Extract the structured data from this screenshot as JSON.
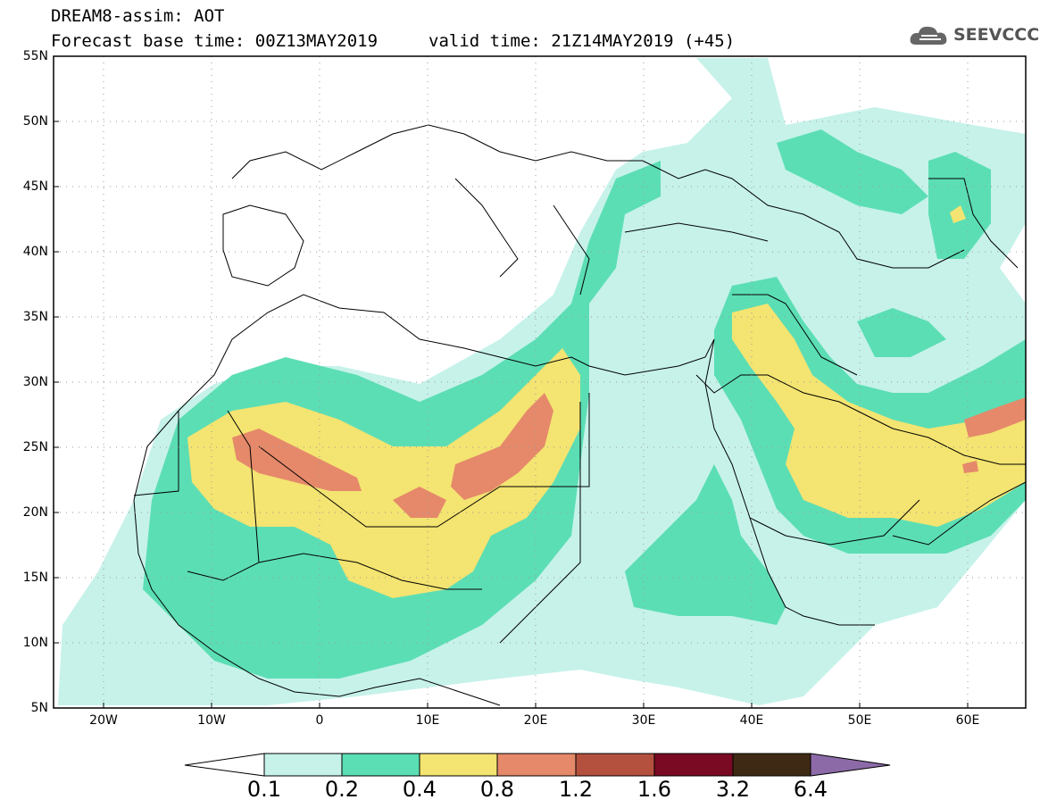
{
  "title": {
    "line1": "DREAM8-assim: AOT",
    "line2": "Forecast base time: 00Z13MAY2019",
    "valid": "valid time: 21Z14MAY2019 (+45)"
  },
  "logo": {
    "text": "SEEVCCC",
    "icon": "cloud-icon"
  },
  "map": {
    "lon_range": [
      -25,
      65
    ],
    "lat_range": [
      5,
      55
    ],
    "lat_ticks": [
      "55N",
      "50N",
      "45N",
      "40N",
      "35N",
      "30N",
      "25N",
      "20N",
      "15N",
      "10N",
      "5N"
    ],
    "lon_ticks": [
      "20W",
      "10W",
      "0",
      "10E",
      "20E",
      "30E",
      "40E",
      "50E",
      "60E"
    ],
    "grid": true
  },
  "legend": {
    "levels": [
      "0.1",
      "0.2",
      "0.4",
      "0.8",
      "1.2",
      "1.6",
      "3.2",
      "6.4"
    ],
    "colors": [
      "#ffffff",
      "#c6f2ea",
      "#5cdeb4",
      "#f4e471",
      "#e5896a",
      "#b4503e",
      "#7a0a24",
      "#3e2a14",
      "#8c6aa8"
    ]
  }
}
